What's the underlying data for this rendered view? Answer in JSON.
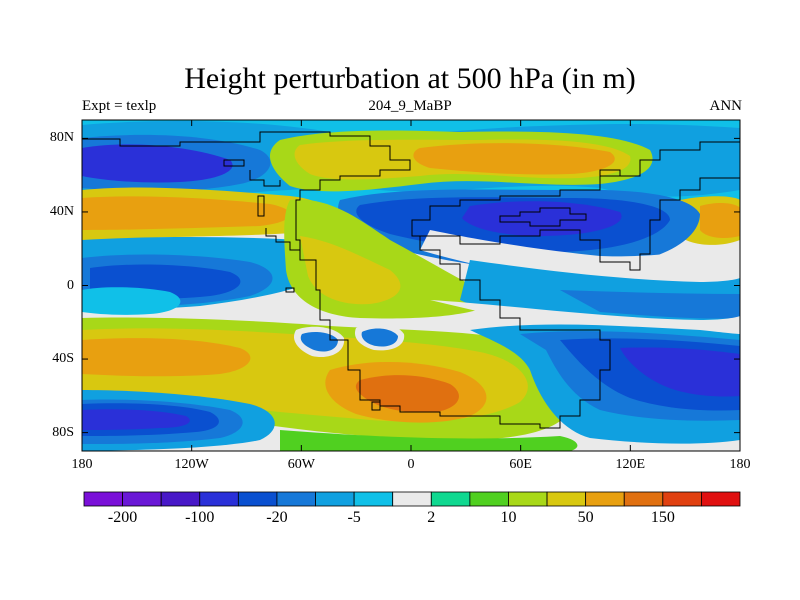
{
  "chart_data": {
    "type": "heatmap",
    "title": "Height perturbation at 500 hPa (in m)",
    "left_label": "Expt = texlp",
    "center_label": "204_9_MaBP",
    "right_label": "ANN",
    "xlim": [
      -180,
      180
    ],
    "ylim": [
      -90,
      90
    ],
    "x_ticks": [
      {
        "value": -180,
        "label": "180"
      },
      {
        "value": -120,
        "label": "120W"
      },
      {
        "value": -60,
        "label": "60W"
      },
      {
        "value": 0,
        "label": "0"
      },
      {
        "value": 60,
        "label": "60E"
      },
      {
        "value": 120,
        "label": "120E"
      },
      {
        "value": 180,
        "label": "180"
      }
    ],
    "y_ticks": [
      {
        "value": 80,
        "label": "80N"
      },
      {
        "value": 40,
        "label": "40N"
      },
      {
        "value": 0,
        "label": "0"
      },
      {
        "value": -40,
        "label": "40S"
      },
      {
        "value": -80,
        "label": "80S"
      }
    ],
    "colorbar": {
      "colors": [
        "#7a10d8",
        "#6a18d6",
        "#4818c8",
        "#2a30d8",
        "#0a50d0",
        "#1678d8",
        "#10a0e0",
        "#10c0e8",
        "#eaeaea",
        "#10d890",
        "#50d020",
        "#a8d818",
        "#d8c810",
        "#e8a010",
        "#e07010",
        "#e04010",
        "#e01010"
      ],
      "labels": [
        {
          "index": 1,
          "text": "-200"
        },
        {
          "index": 3,
          "text": "-100"
        },
        {
          "index": 5,
          "text": "-20"
        },
        {
          "index": 7,
          "text": "-5"
        },
        {
          "index": 9,
          "text": "2"
        },
        {
          "index": 11,
          "text": "10"
        },
        {
          "index": 13,
          "text": "50"
        },
        {
          "index": 15,
          "text": "150"
        }
      ]
    }
  }
}
